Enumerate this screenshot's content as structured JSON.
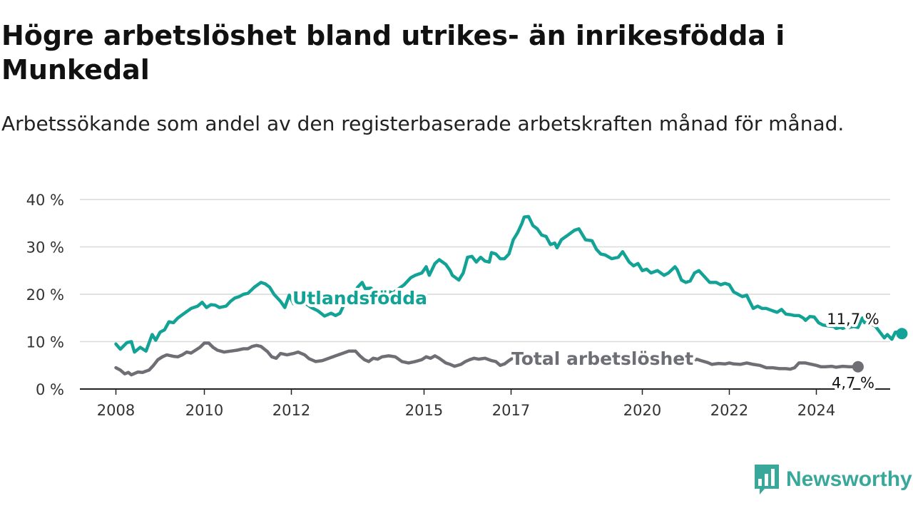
{
  "header": {
    "title": "Högre arbetslöshet bland utrikes- än inrikesfödda i Munkedal",
    "subtitle": "Arbetssökande som andel av den registerbaserade arbetskraften månad för månad."
  },
  "brand": {
    "name": "Newsworthy",
    "icon": "newsworthy-chart-icon",
    "color": "#3aa79b"
  },
  "chart_data": {
    "type": "line",
    "title": "Högre arbetslöshet bland utrikes- än inrikesfödda i Munkedal",
    "subtitle": "Arbetssökande som andel av den registerbaserade arbetskraften månad för månad.",
    "xlabel": "",
    "ylabel": "",
    "ylim": [
      0,
      40
    ],
    "xlim": [
      2008,
      2025.1
    ],
    "y_ticks": [
      0,
      10,
      20,
      30,
      40
    ],
    "y_tick_labels": [
      "0 %",
      "10 %",
      "20 %",
      "30 %",
      "40 %"
    ],
    "x_ticks": [
      2008,
      2010,
      2012,
      2015,
      2017,
      2020,
      2022,
      2024
    ],
    "x_tick_labels": [
      "2008",
      "2010",
      "2012",
      "2015",
      "2017",
      "2020",
      "2022",
      "2024"
    ],
    "grid": "horizontal",
    "legend": "inline labels",
    "series": [
      {
        "name": "Utlandsfödda",
        "color": "#13a396",
        "end_label": "11,7 %",
        "points": [
          [
            2008.0,
            9.5
          ],
          [
            2008.1,
            8.4
          ],
          [
            2008.25,
            9.8
          ],
          [
            2008.35,
            10.0
          ],
          [
            2008.42,
            7.8
          ],
          [
            2008.55,
            8.8
          ],
          [
            2008.68,
            8.0
          ],
          [
            2008.82,
            11.5
          ],
          [
            2008.9,
            10.3
          ],
          [
            2009.0,
            12.0
          ],
          [
            2009.1,
            12.5
          ],
          [
            2009.2,
            14.2
          ],
          [
            2009.3,
            14.0
          ],
          [
            2009.4,
            15.0
          ],
          [
            2009.55,
            16.0
          ],
          [
            2009.7,
            17.0
          ],
          [
            2009.85,
            17.5
          ],
          [
            2009.95,
            18.3
          ],
          [
            2010.05,
            17.2
          ],
          [
            2010.15,
            17.8
          ],
          [
            2010.25,
            17.7
          ],
          [
            2010.35,
            17.2
          ],
          [
            2010.5,
            17.5
          ],
          [
            2010.6,
            18.5
          ],
          [
            2010.7,
            19.2
          ],
          [
            2010.8,
            19.5
          ],
          [
            2010.9,
            20.0
          ],
          [
            2011.0,
            20.2
          ],
          [
            2011.15,
            21.5
          ],
          [
            2011.3,
            22.5
          ],
          [
            2011.4,
            22.2
          ],
          [
            2011.5,
            21.5
          ],
          [
            2011.6,
            20.0
          ],
          [
            2011.75,
            18.5
          ],
          [
            2011.85,
            17.2
          ],
          [
            2011.95,
            19.8
          ],
          [
            2012.05,
            18.0
          ],
          [
            2012.2,
            19.0
          ],
          [
            2012.3,
            18.2
          ],
          [
            2012.45,
            17.2
          ],
          [
            2012.6,
            16.5
          ],
          [
            2012.75,
            15.4
          ],
          [
            2012.9,
            16.0
          ],
          [
            2013.0,
            15.5
          ],
          [
            2013.1,
            16.0
          ],
          [
            2013.2,
            18.0
          ],
          [
            2013.35,
            19.0
          ],
          [
            2013.5,
            21.5
          ],
          [
            2013.6,
            22.5
          ],
          [
            2013.67,
            21.2
          ],
          [
            2013.8,
            21.3
          ],
          [
            2013.9,
            20.5
          ],
          [
            2014.1,
            20.8
          ],
          [
            2014.3,
            20.3
          ],
          [
            2014.4,
            21.0
          ],
          [
            2014.55,
            22.0
          ],
          [
            2014.7,
            23.5
          ],
          [
            2014.8,
            24.0
          ],
          [
            2014.95,
            24.5
          ],
          [
            2015.05,
            25.8
          ],
          [
            2015.12,
            24.0
          ],
          [
            2015.25,
            26.5
          ],
          [
            2015.35,
            27.3
          ],
          [
            2015.5,
            26.3
          ],
          [
            2015.6,
            25.0
          ],
          [
            2015.65,
            24.0
          ],
          [
            2015.8,
            23.0
          ],
          [
            2015.9,
            24.5
          ],
          [
            2016.0,
            27.8
          ],
          [
            2016.1,
            28.0
          ],
          [
            2016.2,
            26.8
          ],
          [
            2016.3,
            27.8
          ],
          [
            2016.4,
            27.0
          ],
          [
            2016.5,
            26.8
          ],
          [
            2016.55,
            28.8
          ],
          [
            2016.65,
            28.5
          ],
          [
            2016.75,
            27.5
          ],
          [
            2016.85,
            27.5
          ],
          [
            2016.95,
            28.5
          ],
          [
            2017.05,
            31.5
          ],
          [
            2017.15,
            33.0
          ],
          [
            2017.25,
            35.0
          ],
          [
            2017.3,
            36.3
          ],
          [
            2017.4,
            36.4
          ],
          [
            2017.5,
            34.5
          ],
          [
            2017.6,
            33.8
          ],
          [
            2017.7,
            32.5
          ],
          [
            2017.8,
            32.2
          ],
          [
            2017.9,
            30.5
          ],
          [
            2018.0,
            30.8
          ],
          [
            2018.05,
            29.8
          ],
          [
            2018.15,
            31.5
          ],
          [
            2018.3,
            32.5
          ],
          [
            2018.45,
            33.5
          ],
          [
            2018.55,
            33.8
          ],
          [
            2018.7,
            31.5
          ],
          [
            2018.85,
            31.3
          ],
          [
            2018.95,
            29.5
          ],
          [
            2019.05,
            28.5
          ],
          [
            2019.15,
            28.3
          ],
          [
            2019.3,
            27.5
          ],
          [
            2019.45,
            27.8
          ],
          [
            2019.55,
            29.0
          ],
          [
            2019.7,
            26.8
          ],
          [
            2019.8,
            26.0
          ],
          [
            2019.9,
            26.5
          ],
          [
            2020.0,
            25.0
          ],
          [
            2020.1,
            25.3
          ],
          [
            2020.2,
            24.5
          ],
          [
            2020.35,
            25.0
          ],
          [
            2020.5,
            24.0
          ],
          [
            2020.6,
            24.5
          ],
          [
            2020.75,
            25.8
          ],
          [
            2020.8,
            25.2
          ],
          [
            2020.9,
            23.0
          ],
          [
            2021.0,
            22.5
          ],
          [
            2021.1,
            22.8
          ],
          [
            2021.2,
            24.5
          ],
          [
            2021.3,
            25.0
          ],
          [
            2021.4,
            24.0
          ],
          [
            2021.55,
            22.5
          ],
          [
            2021.7,
            22.5
          ],
          [
            2021.8,
            22.0
          ],
          [
            2021.9,
            22.3
          ],
          [
            2022.0,
            22.0
          ],
          [
            2022.1,
            20.5
          ],
          [
            2022.2,
            20.0
          ],
          [
            2022.3,
            19.5
          ],
          [
            2022.4,
            19.8
          ],
          [
            2022.45,
            18.8
          ],
          [
            2022.55,
            17.0
          ],
          [
            2022.65,
            17.5
          ],
          [
            2022.75,
            17.0
          ],
          [
            2022.85,
            17.0
          ],
          [
            2023.0,
            16.5
          ],
          [
            2023.1,
            16.2
          ],
          [
            2023.2,
            16.8
          ],
          [
            2023.3,
            15.8
          ],
          [
            2023.4,
            15.7
          ],
          [
            2023.5,
            15.5
          ],
          [
            2023.6,
            15.5
          ],
          [
            2023.7,
            15.0
          ],
          [
            2023.75,
            14.5
          ],
          [
            2023.85,
            15.3
          ],
          [
            2023.95,
            15.2
          ],
          [
            2024.05,
            14.0
          ],
          [
            2024.15,
            13.5
          ],
          [
            2024.3,
            13.3
          ],
          [
            2024.4,
            13.2
          ],
          [
            2024.45,
            12.8
          ],
          [
            2024.55,
            13.0
          ],
          [
            2024.6,
            12.8
          ],
          [
            2024.7,
            13.2
          ],
          [
            2024.75,
            13.0
          ],
          [
            2024.85,
            13.2
          ],
          [
            2024.95,
            13.0
          ],
          [
            2025.05,
            15.0
          ],
          [
            2025.1,
            14.0
          ],
          [
            2025.2,
            14.0
          ],
          [
            2025.35,
            13.2
          ],
          [
            2025.45,
            12.0
          ],
          [
            2025.55,
            10.8
          ],
          [
            2025.62,
            11.5
          ],
          [
            2025.72,
            10.5
          ],
          [
            2025.8,
            12.0
          ],
          [
            2025.88,
            12.0
          ],
          [
            2025.95,
            11.7
          ]
        ]
      },
      {
        "name": "Total arbetslöshet",
        "color": "#6e6e75",
        "end_label": "4,7 %",
        "points": [
          [
            2008.0,
            4.5
          ],
          [
            2008.1,
            4.0
          ],
          [
            2008.2,
            3.2
          ],
          [
            2008.28,
            3.5
          ],
          [
            2008.35,
            3.0
          ],
          [
            2008.5,
            3.6
          ],
          [
            2008.6,
            3.5
          ],
          [
            2008.75,
            4.0
          ],
          [
            2008.85,
            5.0
          ],
          [
            2008.95,
            6.2
          ],
          [
            2009.05,
            6.8
          ],
          [
            2009.15,
            7.2
          ],
          [
            2009.3,
            6.9
          ],
          [
            2009.4,
            6.8
          ],
          [
            2009.5,
            7.2
          ],
          [
            2009.6,
            7.8
          ],
          [
            2009.7,
            7.6
          ],
          [
            2009.8,
            8.2
          ],
          [
            2009.9,
            8.8
          ],
          [
            2010.0,
            9.7
          ],
          [
            2010.1,
            9.7
          ],
          [
            2010.2,
            8.8
          ],
          [
            2010.3,
            8.2
          ],
          [
            2010.45,
            7.8
          ],
          [
            2010.6,
            8.0
          ],
          [
            2010.75,
            8.2
          ],
          [
            2010.9,
            8.5
          ],
          [
            2011.0,
            8.5
          ],
          [
            2011.1,
            9.0
          ],
          [
            2011.2,
            9.2
          ],
          [
            2011.3,
            9.0
          ],
          [
            2011.45,
            7.9
          ],
          [
            2011.55,
            6.8
          ],
          [
            2011.65,
            6.5
          ],
          [
            2011.75,
            7.5
          ],
          [
            2011.9,
            7.2
          ],
          [
            2012.05,
            7.5
          ],
          [
            2012.15,
            7.8
          ],
          [
            2012.3,
            7.2
          ],
          [
            2012.4,
            6.4
          ],
          [
            2012.55,
            5.8
          ],
          [
            2012.7,
            6.0
          ],
          [
            2012.85,
            6.5
          ],
          [
            2013.0,
            7.0
          ],
          [
            2013.15,
            7.5
          ],
          [
            2013.3,
            8.0
          ],
          [
            2013.45,
            8.0
          ],
          [
            2013.55,
            7.0
          ],
          [
            2013.65,
            6.2
          ],
          [
            2013.75,
            5.8
          ],
          [
            2013.85,
            6.5
          ],
          [
            2013.95,
            6.3
          ],
          [
            2014.05,
            6.8
          ],
          [
            2014.2,
            7.0
          ],
          [
            2014.35,
            6.8
          ],
          [
            2014.5,
            5.8
          ],
          [
            2014.65,
            5.5
          ],
          [
            2014.8,
            5.8
          ],
          [
            2014.95,
            6.2
          ],
          [
            2015.05,
            6.8
          ],
          [
            2015.15,
            6.5
          ],
          [
            2015.25,
            7.0
          ],
          [
            2015.35,
            6.5
          ],
          [
            2015.5,
            5.5
          ],
          [
            2015.6,
            5.2
          ],
          [
            2015.7,
            4.8
          ],
          [
            2015.85,
            5.2
          ],
          [
            2015.95,
            5.8
          ],
          [
            2016.05,
            6.2
          ],
          [
            2016.15,
            6.5
          ],
          [
            2016.25,
            6.3
          ],
          [
            2016.4,
            6.5
          ],
          [
            2016.55,
            6.0
          ],
          [
            2016.65,
            5.8
          ],
          [
            2016.75,
            5.0
          ],
          [
            2016.85,
            5.3
          ],
          [
            2016.95,
            6.0
          ],
          [
            2017.05,
            6.6
          ],
          [
            2017.15,
            7.0
          ],
          [
            2017.25,
            7.1
          ],
          [
            2020.75,
            6.3
          ],
          [
            2020.9,
            6.0
          ],
          [
            2021.0,
            5.8
          ],
          [
            2021.15,
            5.8
          ],
          [
            2021.25,
            6.3
          ],
          [
            2021.35,
            6.0
          ],
          [
            2021.5,
            5.6
          ],
          [
            2021.6,
            5.2
          ],
          [
            2021.75,
            5.4
          ],
          [
            2021.9,
            5.3
          ],
          [
            2022.0,
            5.5
          ],
          [
            2022.1,
            5.3
          ],
          [
            2022.25,
            5.2
          ],
          [
            2022.4,
            5.5
          ],
          [
            2022.55,
            5.2
          ],
          [
            2022.7,
            5.0
          ],
          [
            2022.85,
            4.5
          ],
          [
            2023.0,
            4.5
          ],
          [
            2023.15,
            4.3
          ],
          [
            2023.3,
            4.3
          ],
          [
            2023.4,
            4.2
          ],
          [
            2023.5,
            4.5
          ],
          [
            2023.6,
            5.5
          ],
          [
            2023.75,
            5.5
          ],
          [
            2023.85,
            5.3
          ],
          [
            2024.0,
            5.0
          ],
          [
            2024.1,
            4.7
          ],
          [
            2024.2,
            4.7
          ],
          [
            2024.35,
            4.8
          ],
          [
            2024.45,
            4.6
          ],
          [
            2024.6,
            4.8
          ],
          [
            2024.75,
            4.7
          ],
          [
            2024.85,
            4.7
          ],
          [
            2024.95,
            4.7
          ]
        ]
      }
    ]
  }
}
